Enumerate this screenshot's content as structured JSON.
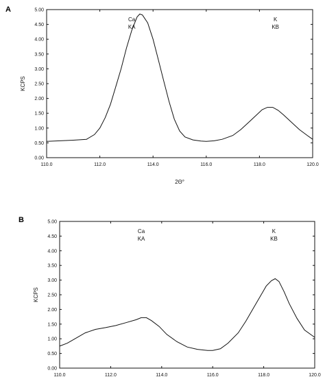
{
  "chart_data": [
    {
      "panel": "A",
      "type": "line",
      "xlabel": "2Θ°",
      "ylabel": "KCPS",
      "xlim": [
        110.0,
        120.0
      ],
      "ylim": [
        0.0,
        5.0
      ],
      "xticks": [
        "110.0",
        "112.0",
        "114.0",
        "116.0",
        "118.0",
        "120.0"
      ],
      "yticks": [
        "0.00",
        "0.50",
        "1.00",
        "1.50",
        "2.00",
        "2.50",
        "3.00",
        "3.50",
        "4.00",
        "4.50",
        "5.00"
      ],
      "annotations": [
        {
          "line1": "Ca",
          "line2": "KA",
          "x": 113.2
        },
        {
          "line1": "K",
          "line2": "KB",
          "x": 118.6
        }
      ],
      "series": [
        {
          "x": [
            110.0,
            110.5,
            111.0,
            111.5,
            111.8,
            112.0,
            112.2,
            112.4,
            112.6,
            112.8,
            113.0,
            113.2,
            113.4,
            113.5,
            113.6,
            113.8,
            114.0,
            114.2,
            114.4,
            114.6,
            114.8,
            115.0,
            115.2,
            115.5,
            115.8,
            116.0,
            116.3,
            116.6,
            117.0,
            117.3,
            117.6,
            117.9,
            118.1,
            118.3,
            118.5,
            118.7,
            118.9,
            119.2,
            119.5,
            119.8,
            120.0
          ],
          "y": [
            0.55,
            0.57,
            0.59,
            0.62,
            0.78,
            1.0,
            1.35,
            1.8,
            2.4,
            3.0,
            3.7,
            4.3,
            4.75,
            4.85,
            4.82,
            4.55,
            4.0,
            3.3,
            2.6,
            1.9,
            1.3,
            0.9,
            0.7,
            0.6,
            0.56,
            0.55,
            0.57,
            0.62,
            0.75,
            0.95,
            1.2,
            1.45,
            1.62,
            1.7,
            1.7,
            1.6,
            1.45,
            1.2,
            0.95,
            0.75,
            0.62
          ]
        }
      ]
    },
    {
      "panel": "B",
      "type": "line",
      "xlabel": "",
      "ylabel": "KCPS",
      "xlim": [
        110.0,
        120.0
      ],
      "ylim": [
        0.0,
        5.0
      ],
      "xticks": [
        "110.0",
        "112.0",
        "114.0",
        "116.0",
        "118.0",
        "120.0"
      ],
      "yticks": [
        "0.00",
        "0.50",
        "1.00",
        "1.50",
        "2.00",
        "2.50",
        "3.00",
        "3.50",
        "4.00",
        "4.50",
        "5.00"
      ],
      "annotations": [
        {
          "line1": "Ca",
          "line2": "KA",
          "x": 113.2
        },
        {
          "line1": "K",
          "line2": "KB",
          "x": 118.4
        }
      ],
      "series": [
        {
          "x": [
            110.0,
            110.3,
            110.6,
            111.0,
            111.4,
            111.8,
            112.2,
            112.6,
            113.0,
            113.2,
            113.4,
            113.6,
            113.9,
            114.2,
            114.6,
            115.0,
            115.4,
            115.8,
            116.0,
            116.3,
            116.6,
            117.0,
            117.3,
            117.6,
            117.9,
            118.1,
            118.3,
            118.45,
            118.6,
            118.8,
            119.0,
            119.3,
            119.6,
            120.0
          ],
          "y": [
            0.75,
            0.85,
            1.0,
            1.2,
            1.32,
            1.38,
            1.45,
            1.55,
            1.65,
            1.72,
            1.72,
            1.62,
            1.42,
            1.15,
            0.9,
            0.72,
            0.64,
            0.6,
            0.6,
            0.66,
            0.85,
            1.2,
            1.6,
            2.05,
            2.5,
            2.8,
            2.98,
            3.05,
            2.95,
            2.6,
            2.2,
            1.7,
            1.3,
            1.05
          ]
        }
      ]
    }
  ]
}
